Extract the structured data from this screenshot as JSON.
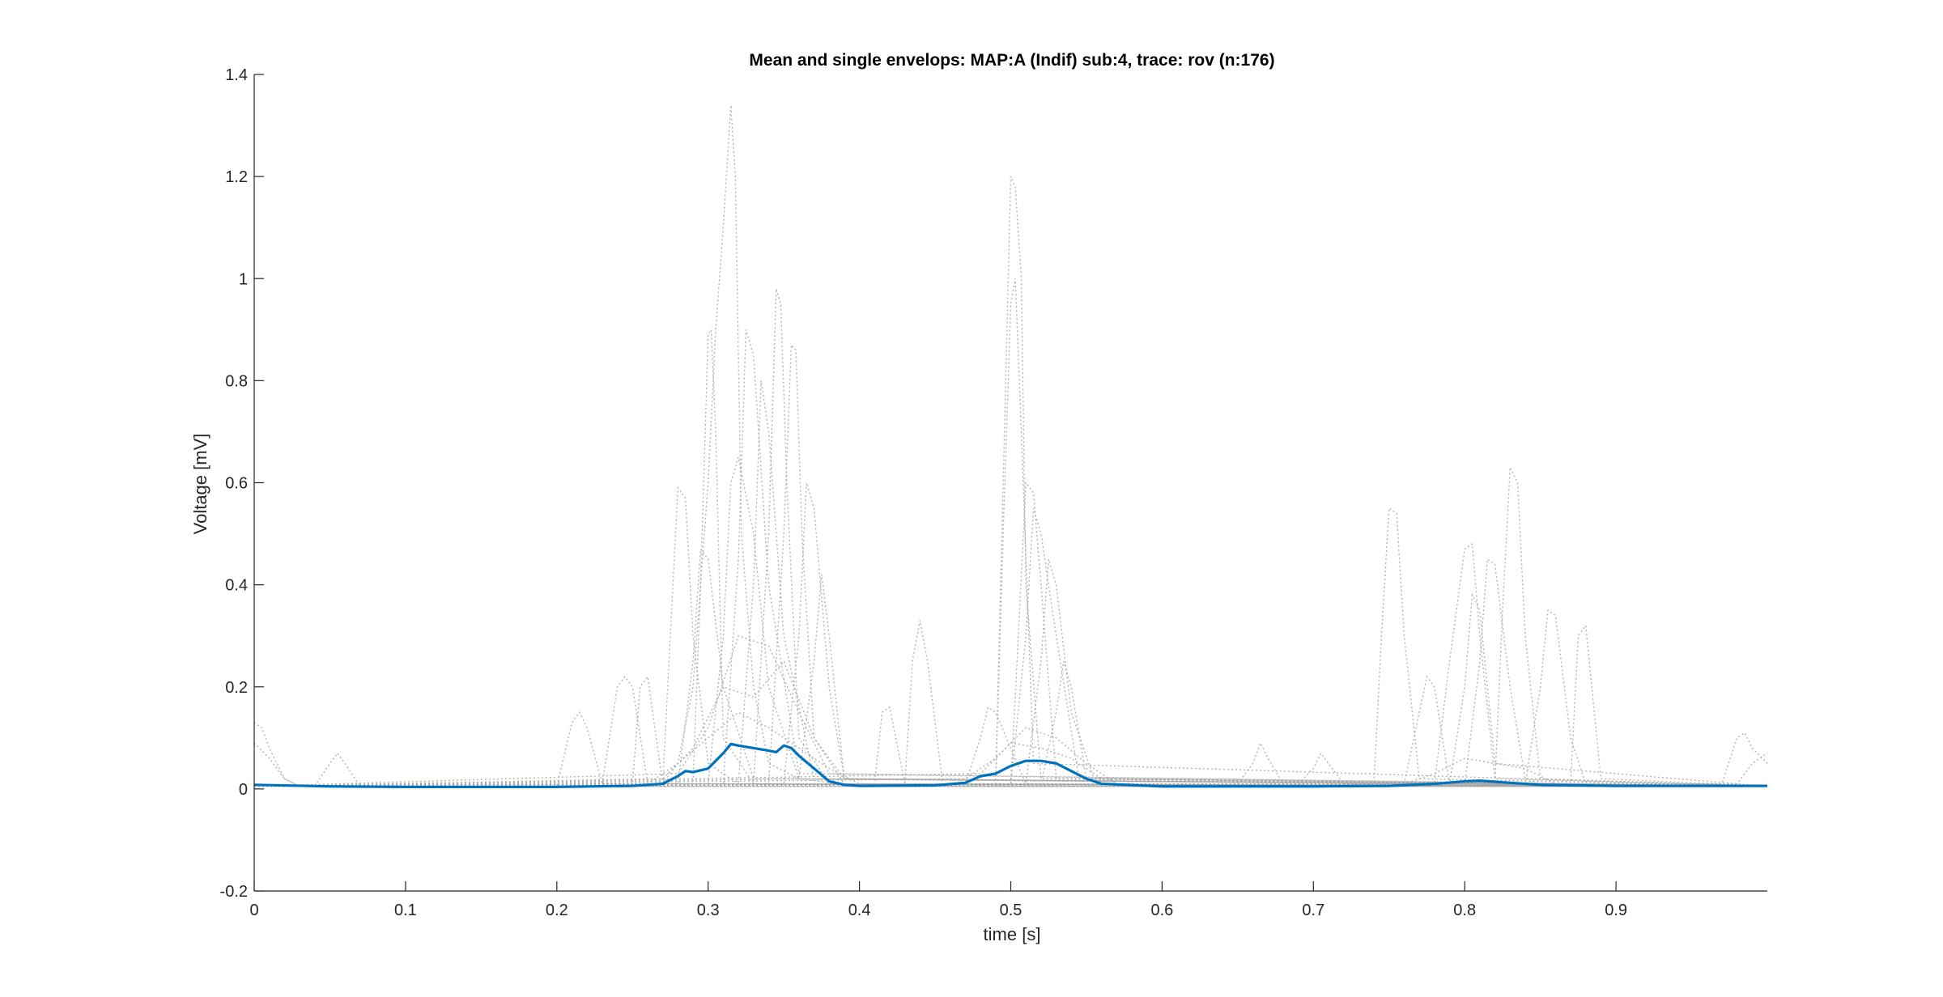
{
  "chart_data": {
    "type": "line",
    "title": "Mean and single envelops: MAP:A (Indif) sub:4, trace: rov (n:176)",
    "xlabel": "time [s]",
    "ylabel": "Voltage [mV]",
    "xlim": [
      0,
      1.0
    ],
    "ylim": [
      -0.2,
      1.4
    ],
    "xticks": [
      0,
      0.1,
      0.2,
      0.3,
      0.4,
      0.5,
      0.6,
      0.7,
      0.8,
      0.9
    ],
    "xtick_labels": [
      "0",
      "0.1",
      "0.2",
      "0.3",
      "0.4",
      "0.5",
      "0.6",
      "0.7",
      "0.8",
      "0.9"
    ],
    "yticks": [
      -0.2,
      0,
      0.2,
      0.4,
      0.6,
      0.8,
      1.0,
      1.2,
      1.4
    ],
    "ytick_labels": [
      "-0.2",
      "0",
      "0.2",
      "0.4",
      "0.6",
      "0.8",
      "1",
      "1.2",
      "1.4"
    ],
    "grid": false,
    "series": [
      {
        "role": "mean",
        "color": "#0072BD",
        "style": "solid",
        "x": [
          0,
          0.05,
          0.1,
          0.15,
          0.2,
          0.25,
          0.27,
          0.28,
          0.285,
          0.29,
          0.3,
          0.31,
          0.315,
          0.32,
          0.33,
          0.34,
          0.345,
          0.35,
          0.355,
          0.36,
          0.37,
          0.38,
          0.39,
          0.4,
          0.45,
          0.47,
          0.48,
          0.49,
          0.5,
          0.51,
          0.52,
          0.53,
          0.54,
          0.55,
          0.56,
          0.6,
          0.7,
          0.75,
          0.78,
          0.8,
          0.81,
          0.83,
          0.85,
          0.9,
          0.95,
          1.0
        ],
        "y": [
          0.008,
          0.005,
          0.004,
          0.004,
          0.004,
          0.006,
          0.01,
          0.025,
          0.035,
          0.033,
          0.04,
          0.07,
          0.088,
          0.085,
          0.08,
          0.075,
          0.072,
          0.085,
          0.08,
          0.065,
          0.04,
          0.015,
          0.008,
          0.006,
          0.007,
          0.012,
          0.025,
          0.03,
          0.045,
          0.055,
          0.055,
          0.05,
          0.035,
          0.02,
          0.01,
          0.005,
          0.005,
          0.006,
          0.01,
          0.015,
          0.016,
          0.012,
          0.008,
          0.006,
          0.006,
          0.006
        ]
      }
    ],
    "single_traces": {
      "color": "#a6a6a6",
      "style": "dotted",
      "count": 176,
      "peak_regions": [
        {
          "x_range": [
            0.27,
            0.38
          ],
          "max_y": 1.34,
          "peak_x": 0.314
        },
        {
          "x_range": [
            0.47,
            0.56
          ],
          "max_y": 1.2,
          "peak_x": 0.5
        },
        {
          "x_range": [
            0.74,
            0.88
          ],
          "max_y": 0.63,
          "peak_x": 0.83
        }
      ],
      "traces": [
        {
          "x": [
            0,
            0.2,
            0.27,
            0.28,
            0.29,
            0.3,
            0.305,
            0.31,
            0.315,
            0.318,
            0.322,
            0.33,
            0.34,
            0.36,
            0.4,
            1.0
          ],
          "y": [
            0.005,
            0.005,
            0.01,
            0.05,
            0.2,
            0.6,
            0.9,
            1.1,
            1.34,
            1.2,
            0.5,
            0.2,
            0.05,
            0.02,
            0.005,
            0.005
          ]
        },
        {
          "x": [
            0,
            0.29,
            0.295,
            0.3,
            0.302,
            0.305,
            0.31,
            0.33,
            0.5,
            1.0
          ],
          "y": [
            0.005,
            0.01,
            0.4,
            0.89,
            0.9,
            0.7,
            0.1,
            0.01,
            0.005,
            0.005
          ]
        },
        {
          "x": [
            0,
            0.33,
            0.34,
            0.345,
            0.348,
            0.352,
            0.36,
            0.38,
            1.0
          ],
          "y": [
            0.005,
            0.01,
            0.5,
            0.98,
            0.95,
            0.6,
            0.1,
            0.01,
            0.005
          ]
        },
        {
          "x": [
            0,
            0.34,
            0.35,
            0.355,
            0.358,
            0.362,
            0.37,
            0.39,
            1.0
          ],
          "y": [
            0.005,
            0.01,
            0.5,
            0.87,
            0.86,
            0.5,
            0.1,
            0.01,
            0.005
          ]
        },
        {
          "x": [
            0,
            0.27,
            0.275,
            0.28,
            0.285,
            0.29,
            0.3,
            0.32,
            1.0
          ],
          "y": [
            0.005,
            0.01,
            0.3,
            0.59,
            0.57,
            0.3,
            0.05,
            0.01,
            0.005
          ]
        },
        {
          "x": [
            0,
            0.3,
            0.31,
            0.315,
            0.32,
            0.33,
            0.34,
            0.36,
            1.0
          ],
          "y": [
            0.005,
            0.01,
            0.3,
            0.6,
            0.65,
            0.5,
            0.2,
            0.02,
            0.005
          ]
        },
        {
          "x": [
            0,
            0.32,
            0.33,
            0.335,
            0.34,
            0.35,
            0.37,
            1.0
          ],
          "y": [
            0.005,
            0.01,
            0.4,
            0.8,
            0.7,
            0.3,
            0.02,
            0.005
          ]
        },
        {
          "x": [
            0,
            0.28,
            0.29,
            0.295,
            0.3,
            0.31,
            0.33,
            1.0
          ],
          "y": [
            0.005,
            0.01,
            0.25,
            0.47,
            0.45,
            0.2,
            0.02,
            0.005
          ]
        },
        {
          "x": [
            0,
            0.31,
            0.32,
            0.325,
            0.33,
            0.34,
            0.36,
            1.0
          ],
          "y": [
            0.005,
            0.01,
            0.45,
            0.9,
            0.85,
            0.4,
            0.03,
            0.005
          ]
        },
        {
          "x": [
            0,
            0.35,
            0.36,
            0.365,
            0.37,
            0.38,
            0.39,
            1.0
          ],
          "y": [
            0.005,
            0.01,
            0.3,
            0.6,
            0.55,
            0.2,
            0.02,
            0.005
          ]
        },
        {
          "x": [
            0,
            0.36,
            0.37,
            0.375,
            0.38,
            0.39,
            1.0
          ],
          "y": [
            0.005,
            0.02,
            0.25,
            0.42,
            0.3,
            0.02,
            0.005
          ]
        },
        {
          "x": [
            0,
            0.23,
            0.24,
            0.245,
            0.25,
            0.26,
            1.0
          ],
          "y": [
            0.005,
            0.01,
            0.2,
            0.22,
            0.2,
            0.01,
            0.005
          ]
        },
        {
          "x": [
            0,
            0.2,
            0.21,
            0.215,
            0.22,
            0.23,
            1.0
          ],
          "y": [
            0.005,
            0.005,
            0.13,
            0.15,
            0.12,
            0.01,
            0.005
          ]
        },
        {
          "x": [
            0,
            0.25,
            0.255,
            0.26,
            0.27,
            1.0
          ],
          "y": [
            0.005,
            0.01,
            0.2,
            0.22,
            0.01,
            0.005
          ]
        },
        {
          "x": [
            0,
            0.43,
            0.435,
            0.44,
            0.445,
            0.455,
            1.0
          ],
          "y": [
            0.005,
            0.01,
            0.25,
            0.33,
            0.25,
            0.01,
            0.005
          ]
        },
        {
          "x": [
            0,
            0.41,
            0.415,
            0.42,
            0.43,
            1.0
          ],
          "y": [
            0.005,
            0.01,
            0.15,
            0.16,
            0.01,
            0.005
          ]
        },
        {
          "x": [
            0,
            0.49,
            0.495,
            0.5,
            0.503,
            0.507,
            0.51,
            0.52,
            1.0
          ],
          "y": [
            0.005,
            0.01,
            0.6,
            1.2,
            1.18,
            1.0,
            0.4,
            0.02,
            0.005
          ]
        },
        {
          "x": [
            0,
            0.49,
            0.495,
            0.5,
            0.503,
            0.507,
            0.515,
            1.0
          ],
          "y": [
            0.005,
            0.01,
            0.5,
            0.95,
            1.0,
            0.7,
            0.05,
            0.005
          ]
        },
        {
          "x": [
            0,
            0.5,
            0.505,
            0.51,
            0.515,
            0.52,
            0.53,
            1.0
          ],
          "y": [
            0.005,
            0.01,
            0.3,
            0.6,
            0.58,
            0.4,
            0.02,
            0.005
          ]
        },
        {
          "x": [
            0,
            0.5,
            0.51,
            0.515,
            0.52,
            0.53,
            0.545,
            1.0
          ],
          "y": [
            0.005,
            0.01,
            0.3,
            0.55,
            0.5,
            0.3,
            0.02,
            0.005
          ]
        },
        {
          "x": [
            0,
            0.51,
            0.52,
            0.525,
            0.53,
            0.54,
            0.555,
            1.0
          ],
          "y": [
            0.005,
            0.01,
            0.25,
            0.45,
            0.4,
            0.15,
            0.02,
            0.005
          ]
        },
        {
          "x": [
            0,
            0.47,
            0.48,
            0.485,
            0.49,
            0.5,
            0.51,
            1.0
          ],
          "y": [
            0.005,
            0.01,
            0.1,
            0.16,
            0.15,
            0.08,
            0.01,
            0.005
          ]
        },
        {
          "x": [
            0,
            0.52,
            0.53,
            0.535,
            0.54,
            0.55,
            1.0
          ],
          "y": [
            0.005,
            0.01,
            0.15,
            0.25,
            0.2,
            0.02,
            0.005
          ]
        },
        {
          "x": [
            0,
            0.74,
            0.745,
            0.75,
            0.755,
            0.76,
            0.77,
            1.0
          ],
          "y": [
            0.005,
            0.01,
            0.3,
            0.55,
            0.54,
            0.3,
            0.02,
            0.005
          ]
        },
        {
          "x": [
            0,
            0.82,
            0.825,
            0.83,
            0.835,
            0.84,
            0.85,
            1.0
          ],
          "y": [
            0.005,
            0.01,
            0.35,
            0.63,
            0.6,
            0.3,
            0.02,
            0.005
          ]
        },
        {
          "x": [
            0,
            0.78,
            0.79,
            0.8,
            0.805,
            0.81,
            0.82,
            1.0
          ],
          "y": [
            0.005,
            0.01,
            0.25,
            0.47,
            0.48,
            0.3,
            0.02,
            0.005
          ]
        },
        {
          "x": [
            0,
            0.8,
            0.81,
            0.815,
            0.82,
            0.83,
            0.84,
            1.0
          ],
          "y": [
            0.005,
            0.01,
            0.25,
            0.45,
            0.44,
            0.2,
            0.02,
            0.005
          ]
        },
        {
          "x": [
            0,
            0.84,
            0.85,
            0.855,
            0.86,
            0.87,
            0.88,
            1.0
          ],
          "y": [
            0.005,
            0.01,
            0.2,
            0.35,
            0.34,
            0.1,
            0.01,
            0.005
          ]
        },
        {
          "x": [
            0,
            0.87,
            0.875,
            0.88,
            0.89,
            1.0
          ],
          "y": [
            0.005,
            0.01,
            0.3,
            0.32,
            0.02,
            0.005
          ]
        },
        {
          "x": [
            0,
            0.76,
            0.77,
            0.775,
            0.78,
            0.79,
            1.0
          ],
          "y": [
            0.005,
            0.01,
            0.15,
            0.22,
            0.2,
            0.01,
            0.005
          ]
        },
        {
          "x": [
            0,
            0.79,
            0.8,
            0.805,
            0.81,
            0.82,
            1.0
          ],
          "y": [
            0.005,
            0.01,
            0.2,
            0.38,
            0.35,
            0.05,
            0.005
          ]
        },
        {
          "x": [
            0,
            0.65,
            0.66,
            0.665,
            0.67,
            0.68,
            1.0
          ],
          "y": [
            0.005,
            0.01,
            0.05,
            0.09,
            0.06,
            0.01,
            0.005
          ]
        },
        {
          "x": [
            0,
            0.69,
            0.7,
            0.705,
            0.71,
            0.72,
            1.0
          ],
          "y": [
            0.005,
            0.01,
            0.04,
            0.07,
            0.05,
            0.01,
            0.005
          ]
        },
        {
          "x": [
            0,
            0.04,
            0.05,
            0.055,
            0.06,
            0.07,
            1.0
          ],
          "y": [
            0.005,
            0.005,
            0.05,
            0.07,
            0.05,
            0.005,
            0.005
          ]
        },
        {
          "x": [
            0,
            0.005,
            0.01,
            0.02,
            0.03,
            1.0
          ],
          "y": [
            0.13,
            0.12,
            0.08,
            0.02,
            0.005,
            0.005
          ]
        },
        {
          "x": [
            0,
            0.01,
            0.02,
            0.03,
            1.0
          ],
          "y": [
            0.09,
            0.06,
            0.02,
            0.005,
            0.005
          ]
        },
        {
          "x": [
            0,
            0.97,
            0.98,
            0.985,
            0.99,
            1.0
          ],
          "y": [
            0.005,
            0.01,
            0.1,
            0.11,
            0.08,
            0.05
          ]
        },
        {
          "x": [
            0,
            0.98,
            0.99,
            1.0
          ],
          "y": [
            0.005,
            0.01,
            0.05,
            0.07
          ]
        },
        {
          "x": [
            0,
            0.26,
            0.28,
            0.3,
            0.32,
            0.34,
            0.36,
            0.38,
            0.4,
            1.0
          ],
          "y": [
            0.005,
            0.01,
            0.05,
            0.1,
            0.15,
            0.12,
            0.08,
            0.04,
            0.01,
            0.005
          ]
        },
        {
          "x": [
            0,
            0.27,
            0.29,
            0.31,
            0.33,
            0.35,
            0.37,
            0.39,
            1.0
          ],
          "y": [
            0.005,
            0.02,
            0.08,
            0.2,
            0.18,
            0.25,
            0.1,
            0.02,
            0.005
          ]
        },
        {
          "x": [
            0,
            0.28,
            0.3,
            0.32,
            0.34,
            0.36,
            0.38,
            1.0
          ],
          "y": [
            0.005,
            0.03,
            0.12,
            0.3,
            0.28,
            0.15,
            0.03,
            0.005
          ]
        },
        {
          "x": [
            0,
            0.47,
            0.49,
            0.51,
            0.53,
            0.55,
            0.57,
            1.0
          ],
          "y": [
            0.005,
            0.02,
            0.06,
            0.12,
            0.1,
            0.05,
            0.01,
            0.005
          ]
        },
        {
          "x": [
            0,
            0.48,
            0.5,
            0.52,
            0.54,
            0.56,
            1.0
          ],
          "y": [
            0.005,
            0.03,
            0.09,
            0.08,
            0.06,
            0.02,
            0.005
          ]
        },
        {
          "x": [
            0,
            0.76,
            0.78,
            0.8,
            0.82,
            0.84,
            0.86,
            1.0
          ],
          "y": [
            0.005,
            0.01,
            0.03,
            0.06,
            0.05,
            0.04,
            0.01,
            0.005
          ]
        }
      ]
    }
  }
}
